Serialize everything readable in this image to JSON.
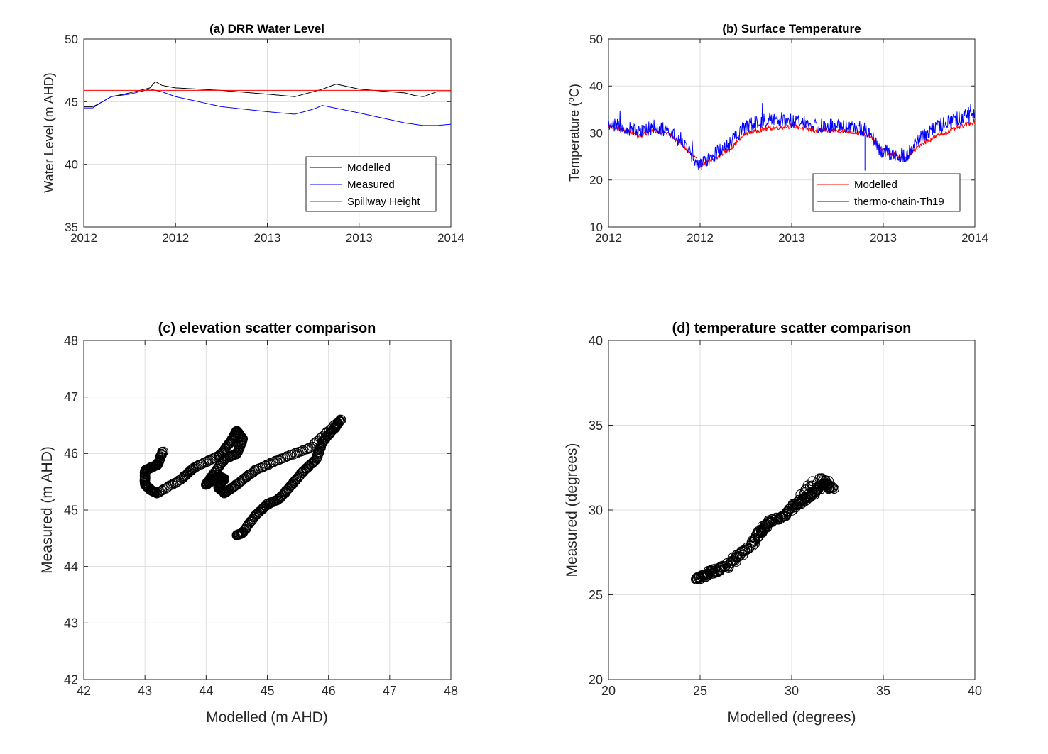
{
  "figure": {
    "panels": [
      "a",
      "b",
      "c",
      "d"
    ]
  },
  "chart_data": [
    {
      "id": "a",
      "type": "line",
      "title": "(a) DRR Water Level",
      "xlabel": "",
      "ylabel": "Water Level (m AHD)",
      "x_tick_labels": [
        "2012",
        "2012",
        "2013",
        "2013",
        "2014"
      ],
      "y_ticks": [
        35,
        40,
        45,
        50
      ],
      "ylim": [
        35,
        50
      ],
      "xlim": [
        0,
        4
      ],
      "grid": true,
      "legend_position": "bottom-right",
      "series": [
        {
          "name": "Modelled",
          "color": "#000000",
          "x": [
            0,
            0.1,
            0.18,
            0.3,
            0.5,
            0.72,
            0.78,
            0.85,
            1.0,
            1.5,
            2.0,
            2.3,
            2.45,
            2.6,
            2.75,
            3.0,
            3.5,
            3.6,
            3.7,
            3.85,
            4.0
          ],
          "values": [
            44.6,
            44.6,
            44.9,
            45.4,
            45.7,
            46.1,
            46.6,
            46.3,
            46.1,
            45.9,
            45.6,
            45.4,
            45.7,
            46.0,
            46.4,
            46.0,
            45.7,
            45.5,
            45.4,
            45.8,
            45.8
          ]
        },
        {
          "name": "Measured",
          "color": "#0000ff",
          "x": [
            0,
            0.1,
            0.18,
            0.3,
            0.5,
            0.72,
            0.85,
            1.0,
            1.5,
            2.0,
            2.3,
            2.5,
            2.6,
            3.0,
            3.5,
            3.7,
            3.85,
            4.0
          ],
          "values": [
            44.5,
            44.5,
            44.9,
            45.4,
            45.6,
            46.0,
            45.8,
            45.4,
            44.6,
            44.2,
            44.0,
            44.4,
            44.7,
            44.1,
            43.3,
            43.1,
            43.1,
            43.2
          ]
        },
        {
          "name": "Spillway Height",
          "color": "#ff0000",
          "x": [
            0,
            4
          ],
          "values": [
            45.9,
            45.9
          ]
        }
      ]
    },
    {
      "id": "b",
      "type": "line",
      "title": "(b) Surface Temperature",
      "xlabel": "",
      "ylabel_prefix": "Temperature (",
      "ylabel_sup": "o",
      "ylabel_suffix": "C)",
      "x_tick_labels": [
        "2012",
        "2012",
        "2013",
        "2013",
        "2014"
      ],
      "y_ticks": [
        10,
        20,
        30,
        40,
        50
      ],
      "ylim": [
        10,
        50
      ],
      "xlim": [
        0,
        4
      ],
      "grid": true,
      "legend_position": "bottom-right",
      "series": [
        {
          "name": "Modelled",
          "color": "#ff0000",
          "x": [
            0,
            0.2,
            0.35,
            0.5,
            0.65,
            0.8,
            0.95,
            1.0,
            1.1,
            1.2,
            1.35,
            1.5,
            1.75,
            2.0,
            2.25,
            2.5,
            2.75,
            2.85,
            2.95,
            3.1,
            3.25,
            3.4,
            3.6,
            3.8,
            4.0
          ],
          "values": [
            31.5,
            30.5,
            29.5,
            30.5,
            30.0,
            27.5,
            24.5,
            23.0,
            24.0,
            25.0,
            27.0,
            30.0,
            31.0,
            31.5,
            30.5,
            30.5,
            30.0,
            29.5,
            27.0,
            25.5,
            24.5,
            27.5,
            29.5,
            31.0,
            32.5
          ]
        },
        {
          "name": "thermo-chain-Th19",
          "color": "#0000ff",
          "x": [
            0,
            0.2,
            0.35,
            0.5,
            0.65,
            0.8,
            0.95,
            1.0,
            1.1,
            1.2,
            1.35,
            1.5,
            1.75,
            2.0,
            2.25,
            2.5,
            2.75,
            2.85,
            2.95,
            3.1,
            3.25,
            3.4,
            3.6,
            3.8,
            4.0
          ],
          "values": [
            32.0,
            31.0,
            30.0,
            31.5,
            30.5,
            28.0,
            24.0,
            23.0,
            24.5,
            26.0,
            28.5,
            31.5,
            33.0,
            32.5,
            31.5,
            31.5,
            31.0,
            30.0,
            26.5,
            25.5,
            25.0,
            29.0,
            31.5,
            33.0,
            34.0
          ]
        }
      ]
    },
    {
      "id": "c",
      "type": "scatter",
      "title": "(c) elevation scatter comparison",
      "xlabel": "Modelled (m AHD)",
      "ylabel": "Measured (m AHD)",
      "x_ticks": [
        42,
        43,
        44,
        45,
        46,
        47,
        48
      ],
      "y_ticks": [
        42,
        43,
        44,
        45,
        46,
        47,
        48
      ],
      "xlim": [
        42,
        48
      ],
      "ylim": [
        42,
        48
      ],
      "grid": true,
      "marker": "open-circle",
      "path": [
        [
          44.5,
          44.55
        ],
        [
          44.6,
          44.6
        ],
        [
          44.8,
          44.9
        ],
        [
          45.0,
          45.1
        ],
        [
          45.2,
          45.2
        ],
        [
          45.4,
          45.45
        ],
        [
          45.6,
          45.7
        ],
        [
          45.8,
          45.9
        ],
        [
          45.9,
          46.2
        ],
        [
          46.1,
          46.45
        ],
        [
          46.2,
          46.6
        ],
        [
          45.7,
          46.1
        ],
        [
          45.2,
          45.9
        ],
        [
          44.8,
          45.7
        ],
        [
          44.5,
          45.45
        ],
        [
          44.3,
          45.3
        ],
        [
          44.2,
          45.4
        ],
        [
          44.3,
          45.55
        ],
        [
          44.2,
          45.6
        ],
        [
          44.0,
          45.45
        ],
        [
          44.1,
          45.6
        ],
        [
          44.3,
          45.9
        ],
        [
          44.5,
          46.0
        ],
        [
          44.6,
          46.25
        ],
        [
          44.5,
          46.4
        ],
        [
          44.4,
          46.2
        ],
        [
          44.2,
          45.95
        ],
        [
          43.8,
          45.75
        ],
        [
          43.6,
          45.55
        ],
        [
          43.2,
          45.3
        ],
        [
          43.1,
          45.35
        ],
        [
          43.0,
          45.45
        ],
        [
          43.0,
          45.7
        ],
        [
          43.1,
          45.75
        ],
        [
          43.2,
          45.8
        ],
        [
          43.3,
          46.05
        ]
      ]
    },
    {
      "id": "d",
      "type": "scatter",
      "title": "(d) temperature scatter comparison",
      "xlabel": "Modelled (degrees)",
      "ylabel": "Measured (degrees)",
      "x_ticks": [
        20,
        25,
        30,
        35,
        40
      ],
      "y_ticks": [
        20,
        25,
        30,
        35,
        40
      ],
      "xlim": [
        20,
        40
      ],
      "ylim": [
        20,
        40
      ],
      "grid": true,
      "marker": "open-circle",
      "path": [
        [
          24.8,
          26.0
        ],
        [
          25.2,
          26.1
        ],
        [
          25.5,
          26.3
        ],
        [
          26.0,
          26.5
        ],
        [
          26.5,
          26.7
        ],
        [
          27.0,
          27.2
        ],
        [
          27.4,
          27.6
        ],
        [
          28.0,
          28.2
        ],
        [
          28.3,
          28.7
        ],
        [
          28.5,
          29.0
        ],
        [
          28.8,
          29.3
        ],
        [
          29.3,
          29.5
        ],
        [
          29.8,
          29.8
        ],
        [
          30.2,
          30.3
        ],
        [
          30.6,
          30.6
        ],
        [
          31.0,
          30.8
        ],
        [
          31.4,
          31.2
        ],
        [
          31.8,
          31.5
        ],
        [
          32.2,
          31.3
        ],
        [
          31.6,
          31.9
        ],
        [
          30.4,
          30.9
        ]
      ]
    }
  ]
}
